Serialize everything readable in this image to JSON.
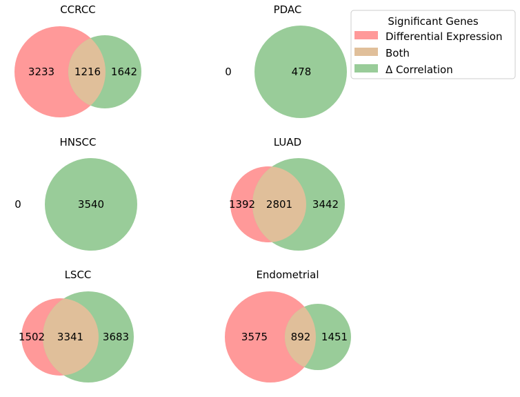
{
  "chart_data": {
    "type": "venn",
    "colors": {
      "differential_expression": "#ff9999",
      "both": "#e0bf9a",
      "delta_correlation": "#99cc99"
    },
    "legend": {
      "title": "Significant Genes",
      "placement": "top-right",
      "entries": [
        "Differential Expression",
        "Both",
        "Δ Correlation"
      ]
    },
    "panels": [
      {
        "title": "CCRCC",
        "differential_expression_only": "3233",
        "both": "1216",
        "delta_correlation_only": "1642"
      },
      {
        "title": "PDAC",
        "differential_expression_only": "0",
        "both": "",
        "delta_correlation_only": "478"
      },
      {
        "title": "HNSCC",
        "differential_expression_only": "0",
        "both": "",
        "delta_correlation_only": "3540"
      },
      {
        "title": "LUAD",
        "differential_expression_only": "1392",
        "both": "2801",
        "delta_correlation_only": "3442"
      },
      {
        "title": "LSCC",
        "differential_expression_only": "1502",
        "both": "3341",
        "delta_correlation_only": "3683"
      },
      {
        "title": "Endometrial",
        "differential_expression_only": "3575",
        "both": "892",
        "delta_correlation_only": "1451"
      }
    ]
  }
}
